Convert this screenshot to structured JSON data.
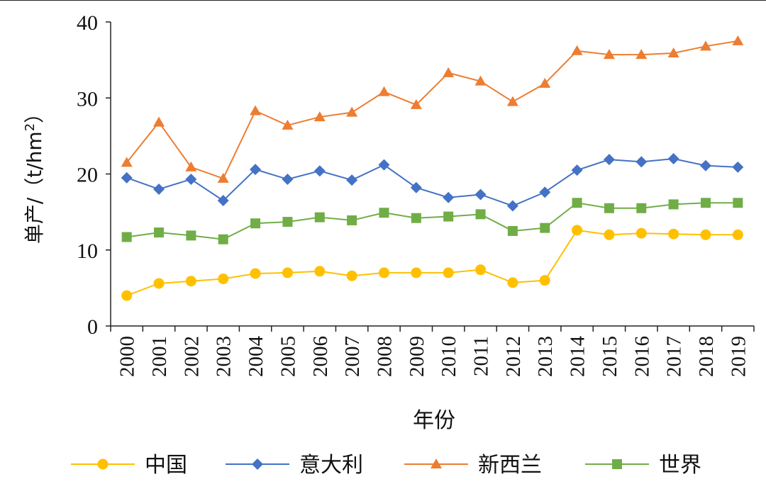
{
  "chart_data": {
    "type": "line",
    "title": "",
    "xlabel": "年份",
    "ylabel_main": "单产/（t/hm",
    "ylabel_sup": "2",
    "ylabel_close": "）",
    "ylim": [
      0,
      40
    ],
    "yticks": [
      "0",
      "10",
      "20",
      "30",
      "40"
    ],
    "ytick_values": [
      0,
      10,
      20,
      30,
      40
    ],
    "categories": [
      "2000",
      "2001",
      "2002",
      "2003",
      "2004",
      "2005",
      "2006",
      "2007",
      "2008",
      "2009",
      "2010",
      "2011",
      "2012",
      "2013",
      "2014",
      "2015",
      "2016",
      "2017",
      "2018",
      "2019"
    ],
    "grid": false,
    "legend_position": "bottom",
    "series": [
      {
        "name": "中国",
        "color": "#FFC000",
        "marker": "circle",
        "values": [
          4.0,
          5.6,
          5.9,
          6.2,
          6.9,
          7.0,
          7.2,
          6.6,
          7.0,
          7.0,
          7.0,
          7.4,
          5.7,
          6.0,
          12.6,
          12.0,
          12.2,
          12.1,
          12.0,
          12.0
        ]
      },
      {
        "name": "意大利",
        "color": "#4472C4",
        "marker": "diamond",
        "values": [
          19.5,
          18.0,
          19.3,
          16.5,
          20.6,
          19.3,
          20.4,
          19.2,
          21.2,
          18.2,
          16.9,
          17.3,
          15.8,
          17.6,
          20.5,
          21.9,
          21.6,
          22.0,
          21.1,
          20.9
        ]
      },
      {
        "name": "新西兰",
        "color": "#ED7D31",
        "marker": "triangle",
        "values": [
          21.5,
          26.8,
          20.9,
          19.4,
          28.3,
          26.4,
          27.5,
          28.1,
          30.8,
          29.1,
          33.3,
          32.2,
          29.5,
          31.9,
          36.2,
          35.7,
          35.7,
          35.9,
          36.8,
          37.5
        ]
      },
      {
        "name": "世界",
        "color": "#70AD47",
        "marker": "square",
        "values": [
          11.7,
          12.3,
          11.9,
          11.4,
          13.5,
          13.7,
          14.3,
          13.9,
          14.9,
          14.2,
          14.4,
          14.7,
          12.5,
          12.9,
          16.2,
          15.5,
          15.5,
          16.0,
          16.2,
          16.2
        ]
      }
    ]
  }
}
